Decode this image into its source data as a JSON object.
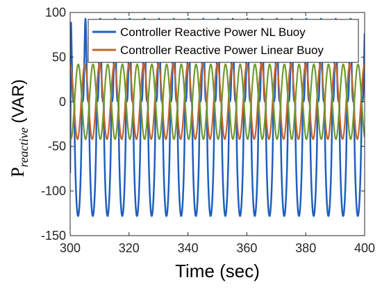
{
  "chart_data": {
    "type": "line",
    "title": "",
    "xlabel": "Time (sec)",
    "ylabel_main": "P",
    "ylabel_sub": "reactive",
    "ylabel_unit": "(VAR)",
    "xlim": [
      300,
      400
    ],
    "ylim": [
      -150,
      100
    ],
    "xticks": [
      "300",
      "320",
      "340",
      "360",
      "380",
      "400"
    ],
    "yticks": [
      "-150",
      "-100",
      "-50",
      "0",
      "50",
      "100"
    ],
    "grid": false,
    "legend_position": "top-right",
    "series": [
      {
        "name": "Controller Reactive Power NL Buoy",
        "color": "#1f5fbf",
        "period": 5.0,
        "phase_start": 300.2,
        "max": 93,
        "min": -128
      },
      {
        "name": "Controller Reactive Power Linear Buoy",
        "color": "#c2662d",
        "period": 5.0,
        "max": 42,
        "min": -42
      },
      {
        "name": "",
        "color": "#6e9a2e",
        "period": 5.0,
        "max": 42,
        "min": -42
      }
    ]
  }
}
